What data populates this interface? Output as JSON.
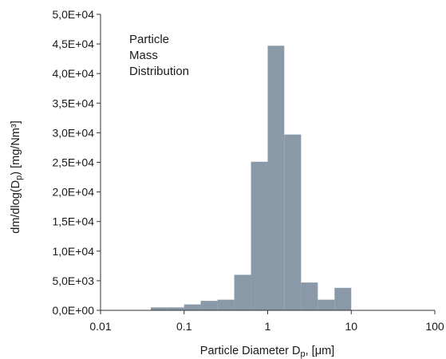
{
  "chart_data": {
    "type": "bar",
    "title": "",
    "annotation": [
      "Particle",
      "Mass",
      "Distribution"
    ],
    "xlabel": {
      "main": "Particle Diameter D",
      "sub": "p",
      "tail": ", [μm]"
    },
    "ylabel": {
      "pre": "dm/dlog(D",
      "sub": "p",
      "post": ") [mg/Nm³]"
    },
    "xscale": "log",
    "xlim": [
      0.01,
      100
    ],
    "ylim": [
      0,
      50000
    ],
    "xticks": [
      0.01,
      0.1,
      1,
      10,
      100
    ],
    "xtick_labels": [
      "0.01",
      "0.1",
      "1",
      "10",
      "100"
    ],
    "yticks": [
      0,
      5000,
      10000,
      15000,
      20000,
      25000,
      30000,
      35000,
      40000,
      45000,
      50000
    ],
    "ytick_labels": [
      "0,0E+00",
      "5,0E+03",
      "1,0E+04",
      "1,5E+04",
      "2,0E+04",
      "2,5E+04",
      "3,0E+04",
      "3,5E+04",
      "4,0E+04",
      "4,5E+04",
      "5,0E+04"
    ],
    "bins": [
      {
        "x0": 0.04,
        "x1": 0.0631,
        "value": 500
      },
      {
        "x0": 0.0631,
        "x1": 0.1,
        "value": 500
      },
      {
        "x0": 0.1,
        "x1": 0.158,
        "value": 1000
      },
      {
        "x0": 0.158,
        "x1": 0.251,
        "value": 1600
      },
      {
        "x0": 0.251,
        "x1": 0.398,
        "value": 1800
      },
      {
        "x0": 0.398,
        "x1": 0.631,
        "value": 6000
      },
      {
        "x0": 0.631,
        "x1": 1.0,
        "value": 25100
      },
      {
        "x0": 1.0,
        "x1": 1.58,
        "value": 44700
      },
      {
        "x0": 1.58,
        "x1": 2.51,
        "value": 29700
      },
      {
        "x0": 2.51,
        "x1": 3.98,
        "value": 4700
      },
      {
        "x0": 3.98,
        "x1": 6.31,
        "value": 1800
      },
      {
        "x0": 6.31,
        "x1": 10.0,
        "value": 3800
      }
    ],
    "bar_color": "#8a99a8",
    "grid": false,
    "legend": "none"
  }
}
